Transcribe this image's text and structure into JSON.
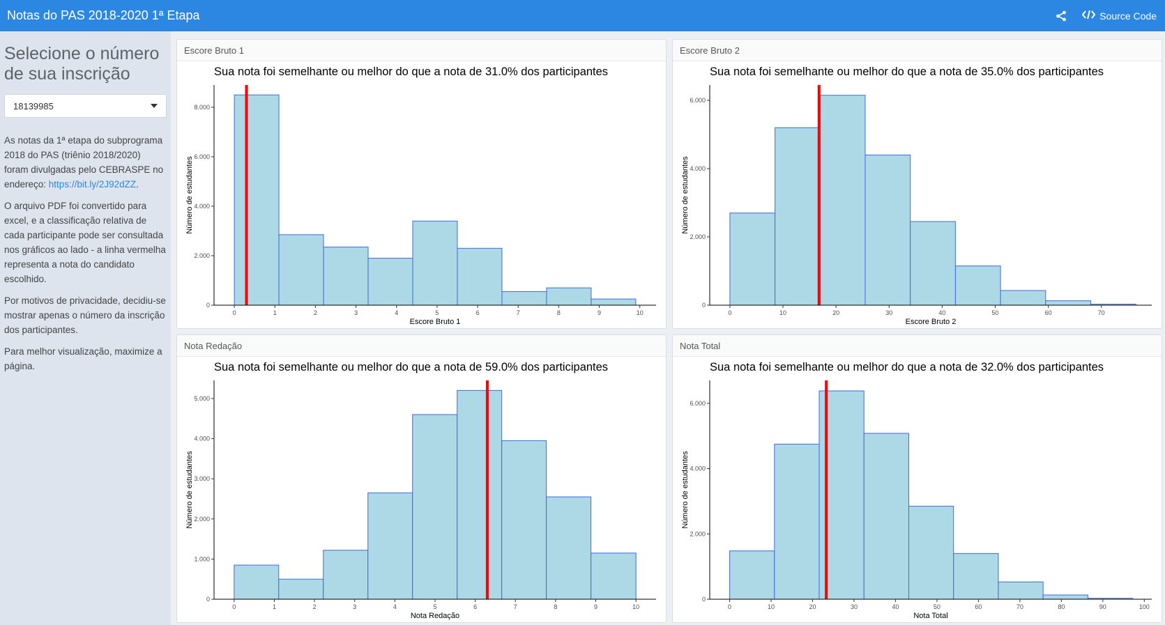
{
  "navbar": {
    "title": "Notas do PAS 2018-2020 1ª Etapa",
    "source_label": "Source Code"
  },
  "sidebar": {
    "heading": "Selecione o número de sua inscrição",
    "selected_value": "18139985",
    "p1_text": "As notas da 1ª etapa do subprograma 2018 do PAS (triênio 2018/2020) foram divulgadas pelo CEBRASPE no endereço: ",
    "p1_link": "https://bit.ly/2J92dZZ",
    "p1_end": ".",
    "p2": "O arquivo PDF foi convertido para excel, e a classificação relativa de cada participante pode ser consultada nos gráficos ao lado - a linha vermelha representa a nota do candidato escolhido.",
    "p3": "Por motivos de privacidade, decidiu-se mostrar apenas o número da inscrição dos participantes.",
    "p4": "Para melhor visualização, maximize a página."
  },
  "cards": [
    {
      "header": "Escore Bruto 1"
    },
    {
      "header": "Escore Bruto 2"
    },
    {
      "header": "Nota Redação"
    },
    {
      "header": "Nota Total"
    }
  ],
  "chart_data": [
    {
      "type": "bar",
      "title": "Sua nota foi semelhante ou melhor do que a nota de 31.0% dos participantes",
      "xlabel": "Escore Bruto 1",
      "ylabel": "Número de estudantes",
      "bin_edges": [
        0,
        1.1,
        2.2,
        3.3,
        4.4,
        5.5,
        6.6,
        7.7,
        8.8,
        9.9
      ],
      "values": [
        8500,
        2850,
        2350,
        1900,
        3400,
        2300,
        550,
        700,
        250
      ],
      "xlim": [
        -0.5,
        10.4
      ],
      "ylim": [
        0,
        8900
      ],
      "xticks": [
        0,
        1,
        2,
        3,
        4,
        5,
        6,
        7,
        8,
        9,
        10
      ],
      "xtick_labels": [
        "0",
        "1",
        "2",
        "3",
        "4",
        "5",
        "6",
        "7",
        "8",
        "9",
        "10"
      ],
      "yticks": [
        0,
        2000,
        4000,
        6000,
        8000
      ],
      "ytick_labels": [
        "0",
        "2.000",
        "4.000",
        "6.000",
        "8.000"
      ],
      "marker": 0.3,
      "bar_fill": "#add8e6",
      "bar_stroke": "#4169e1",
      "marker_color": "#ff0000"
    },
    {
      "type": "bar",
      "title": "Sua nota foi semelhante ou melhor do que a nota de 35.0% dos participantes",
      "xlabel": "Escore Bruto 2",
      "ylabel": "Número de estudantes",
      "bin_edges": [
        0,
        8.5,
        17,
        25.5,
        34,
        42.5,
        51,
        59.5,
        68,
        76.5
      ],
      "values": [
        2700,
        5200,
        6150,
        4400,
        2450,
        1150,
        430,
        130,
        30
      ],
      "xlim": [
        -3.8,
        79.5
      ],
      "ylim": [
        0,
        6450
      ],
      "xticks": [
        0,
        10,
        20,
        30,
        40,
        50,
        60,
        70
      ],
      "xtick_labels": [
        "0",
        "10",
        "20",
        "30",
        "40",
        "50",
        "60",
        "70"
      ],
      "yticks": [
        0,
        2000,
        4000,
        6000
      ],
      "ytick_labels": [
        "0",
        "2.000",
        "4.000",
        "6.000"
      ],
      "marker": 16.8,
      "bar_fill": "#add8e6",
      "bar_stroke": "#4169e1",
      "marker_color": "#ff0000"
    },
    {
      "type": "bar",
      "title": "Sua nota foi semelhante ou melhor do que a nota de 59.0% dos participantes",
      "xlabel": "Nota Redação",
      "ylabel": "Número de estudantes",
      "bin_edges": [
        0,
        1.11,
        2.22,
        3.33,
        4.44,
        5.55,
        6.66,
        7.77,
        8.88,
        10
      ],
      "values": [
        850,
        500,
        1220,
        2650,
        4600,
        5200,
        3950,
        2550,
        1150
      ],
      "xlim": [
        -0.5,
        10.5
      ],
      "ylim": [
        0,
        5450
      ],
      "xticks": [
        0,
        1,
        2,
        3,
        4,
        5,
        6,
        7,
        8,
        9,
        10
      ],
      "xtick_labels": [
        "0",
        "1",
        "2",
        "3",
        "4",
        "5",
        "6",
        "7",
        "8",
        "9",
        "10"
      ],
      "yticks": [
        0,
        1000,
        2000,
        3000,
        4000,
        5000
      ],
      "ytick_labels": [
        "0",
        "1.000",
        "2.000",
        "3.000",
        "4.000",
        "5.000"
      ],
      "marker": 6.3,
      "bar_fill": "#add8e6",
      "bar_stroke": "#4169e1",
      "marker_color": "#ff0000"
    },
    {
      "type": "bar",
      "title": "Sua nota foi semelhante ou melhor do que a nota de 32.0% dos participantes",
      "xlabel": "Nota Total",
      "ylabel": "Número de estudantes",
      "bin_edges": [
        0,
        10.8,
        21.6,
        32.4,
        43.2,
        54,
        64.8,
        75.6,
        86.4,
        97.2
      ],
      "values": [
        1480,
        4750,
        6380,
        5080,
        2850,
        1400,
        530,
        130,
        30
      ],
      "xlim": [
        -4.8,
        101.8
      ],
      "ylim": [
        0,
        6700
      ],
      "xticks": [
        0,
        10,
        20,
        30,
        40,
        50,
        60,
        70,
        80,
        90,
        100
      ],
      "xtick_labels": [
        "0",
        "10",
        "20",
        "30",
        "40",
        "50",
        "60",
        "70",
        "80",
        "90",
        "100"
      ],
      "yticks": [
        0,
        2000,
        4000,
        6000
      ],
      "ytick_labels": [
        "0",
        "2.000",
        "4.000",
        "6.000"
      ],
      "marker": 23.3,
      "bar_fill": "#add8e6",
      "bar_stroke": "#4169e1",
      "marker_color": "#ff0000"
    }
  ]
}
